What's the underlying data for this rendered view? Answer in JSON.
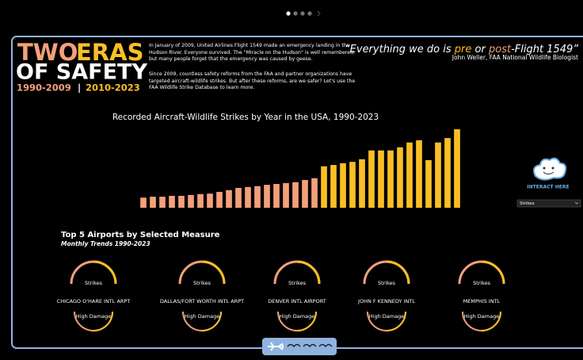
{
  "header": {
    "word_1": "TWO",
    "word_2": "ERAS",
    "word_3": "OF SAFETY",
    "era_1": "1990-2009",
    "separator": "|",
    "era_2": "2010-2023"
  },
  "intro": [
    "In January of 2009, United Airlines Flight 1549 made an emergency landing in the Hudson River. Everyone survived. The \"Miracle on the Hudson\" is well remembered, but many people forget that the emergency was caused by geese.",
    "Since 2009, countless safety reforms from the FAA and partner organizations have targeted aircraft-wildlife strikes. But after these reforms, are we safer? Let's use the FAA Wildlife Strike Database to learn more."
  ],
  "quote": {
    "part_1": "“Everything we do is ",
    "part_2": "pre",
    "part_3": " or ",
    "part_4": "post",
    "part_5": "-Flight 1549”",
    "attribution": "John Weller, FAA National Wildlife Biologist"
  },
  "chart_data": {
    "type": "bar",
    "title": "Recorded Aircraft-Wildlife Strikes by Year in the USA, 1990-2023",
    "values": [
      2300,
      2500,
      2500,
      2700,
      2700,
      2900,
      3100,
      3200,
      3600,
      4000,
      4500,
      4700,
      4900,
      5200,
      5400,
      5600,
      5800,
      6300,
      6700,
      9400,
      9700,
      10100,
      10400,
      11000,
      13000,
      13000,
      13000,
      13700,
      14800,
      15300,
      10800,
      14800,
      15800,
      17800
    ],
    "colors": [
      "#f4a07a",
      "#f4a07a",
      "#f4a07a",
      "#f4a07a",
      "#f4a07a",
      "#f4a07a",
      "#f4a07a",
      "#f4a07a",
      "#f4a07a",
      "#f4a07a",
      "#f4a07a",
      "#f4a07a",
      "#f4a07a",
      "#f4a07a",
      "#f4a07a",
      "#f4a07a",
      "#f4a07a",
      "#f4a07a",
      "#f4a07a",
      "#fbbf24",
      "#fbbf24",
      "#fbbf24",
      "#fbbf24",
      "#fbbf24",
      "#fbbf24",
      "#fbbf24",
      "#fbbf24",
      "#fbbf24",
      "#fbbf24",
      "#fbbf24",
      "#fbbf24",
      "#fbbf24",
      "#fbbf24",
      "#fbbf24"
    ]
  },
  "controls": {
    "interact": "INTERACT HERE",
    "dropdown": "Strikes"
  },
  "airports": {
    "title": "Top 5 Airports by Selected Measure",
    "subtitle": "Monthly Trends 1990-2023",
    "top_label": "Strikes",
    "bottom_label": "High Damage",
    "names": [
      "CHICAGO O'HARE INTL ARPT",
      "DALLAS/FORT WORTH INTL ARPT",
      "DENVER INTL AIRPORT",
      "JOHN F KENNEDY INTL",
      "MEMPHIS INTL"
    ]
  }
}
